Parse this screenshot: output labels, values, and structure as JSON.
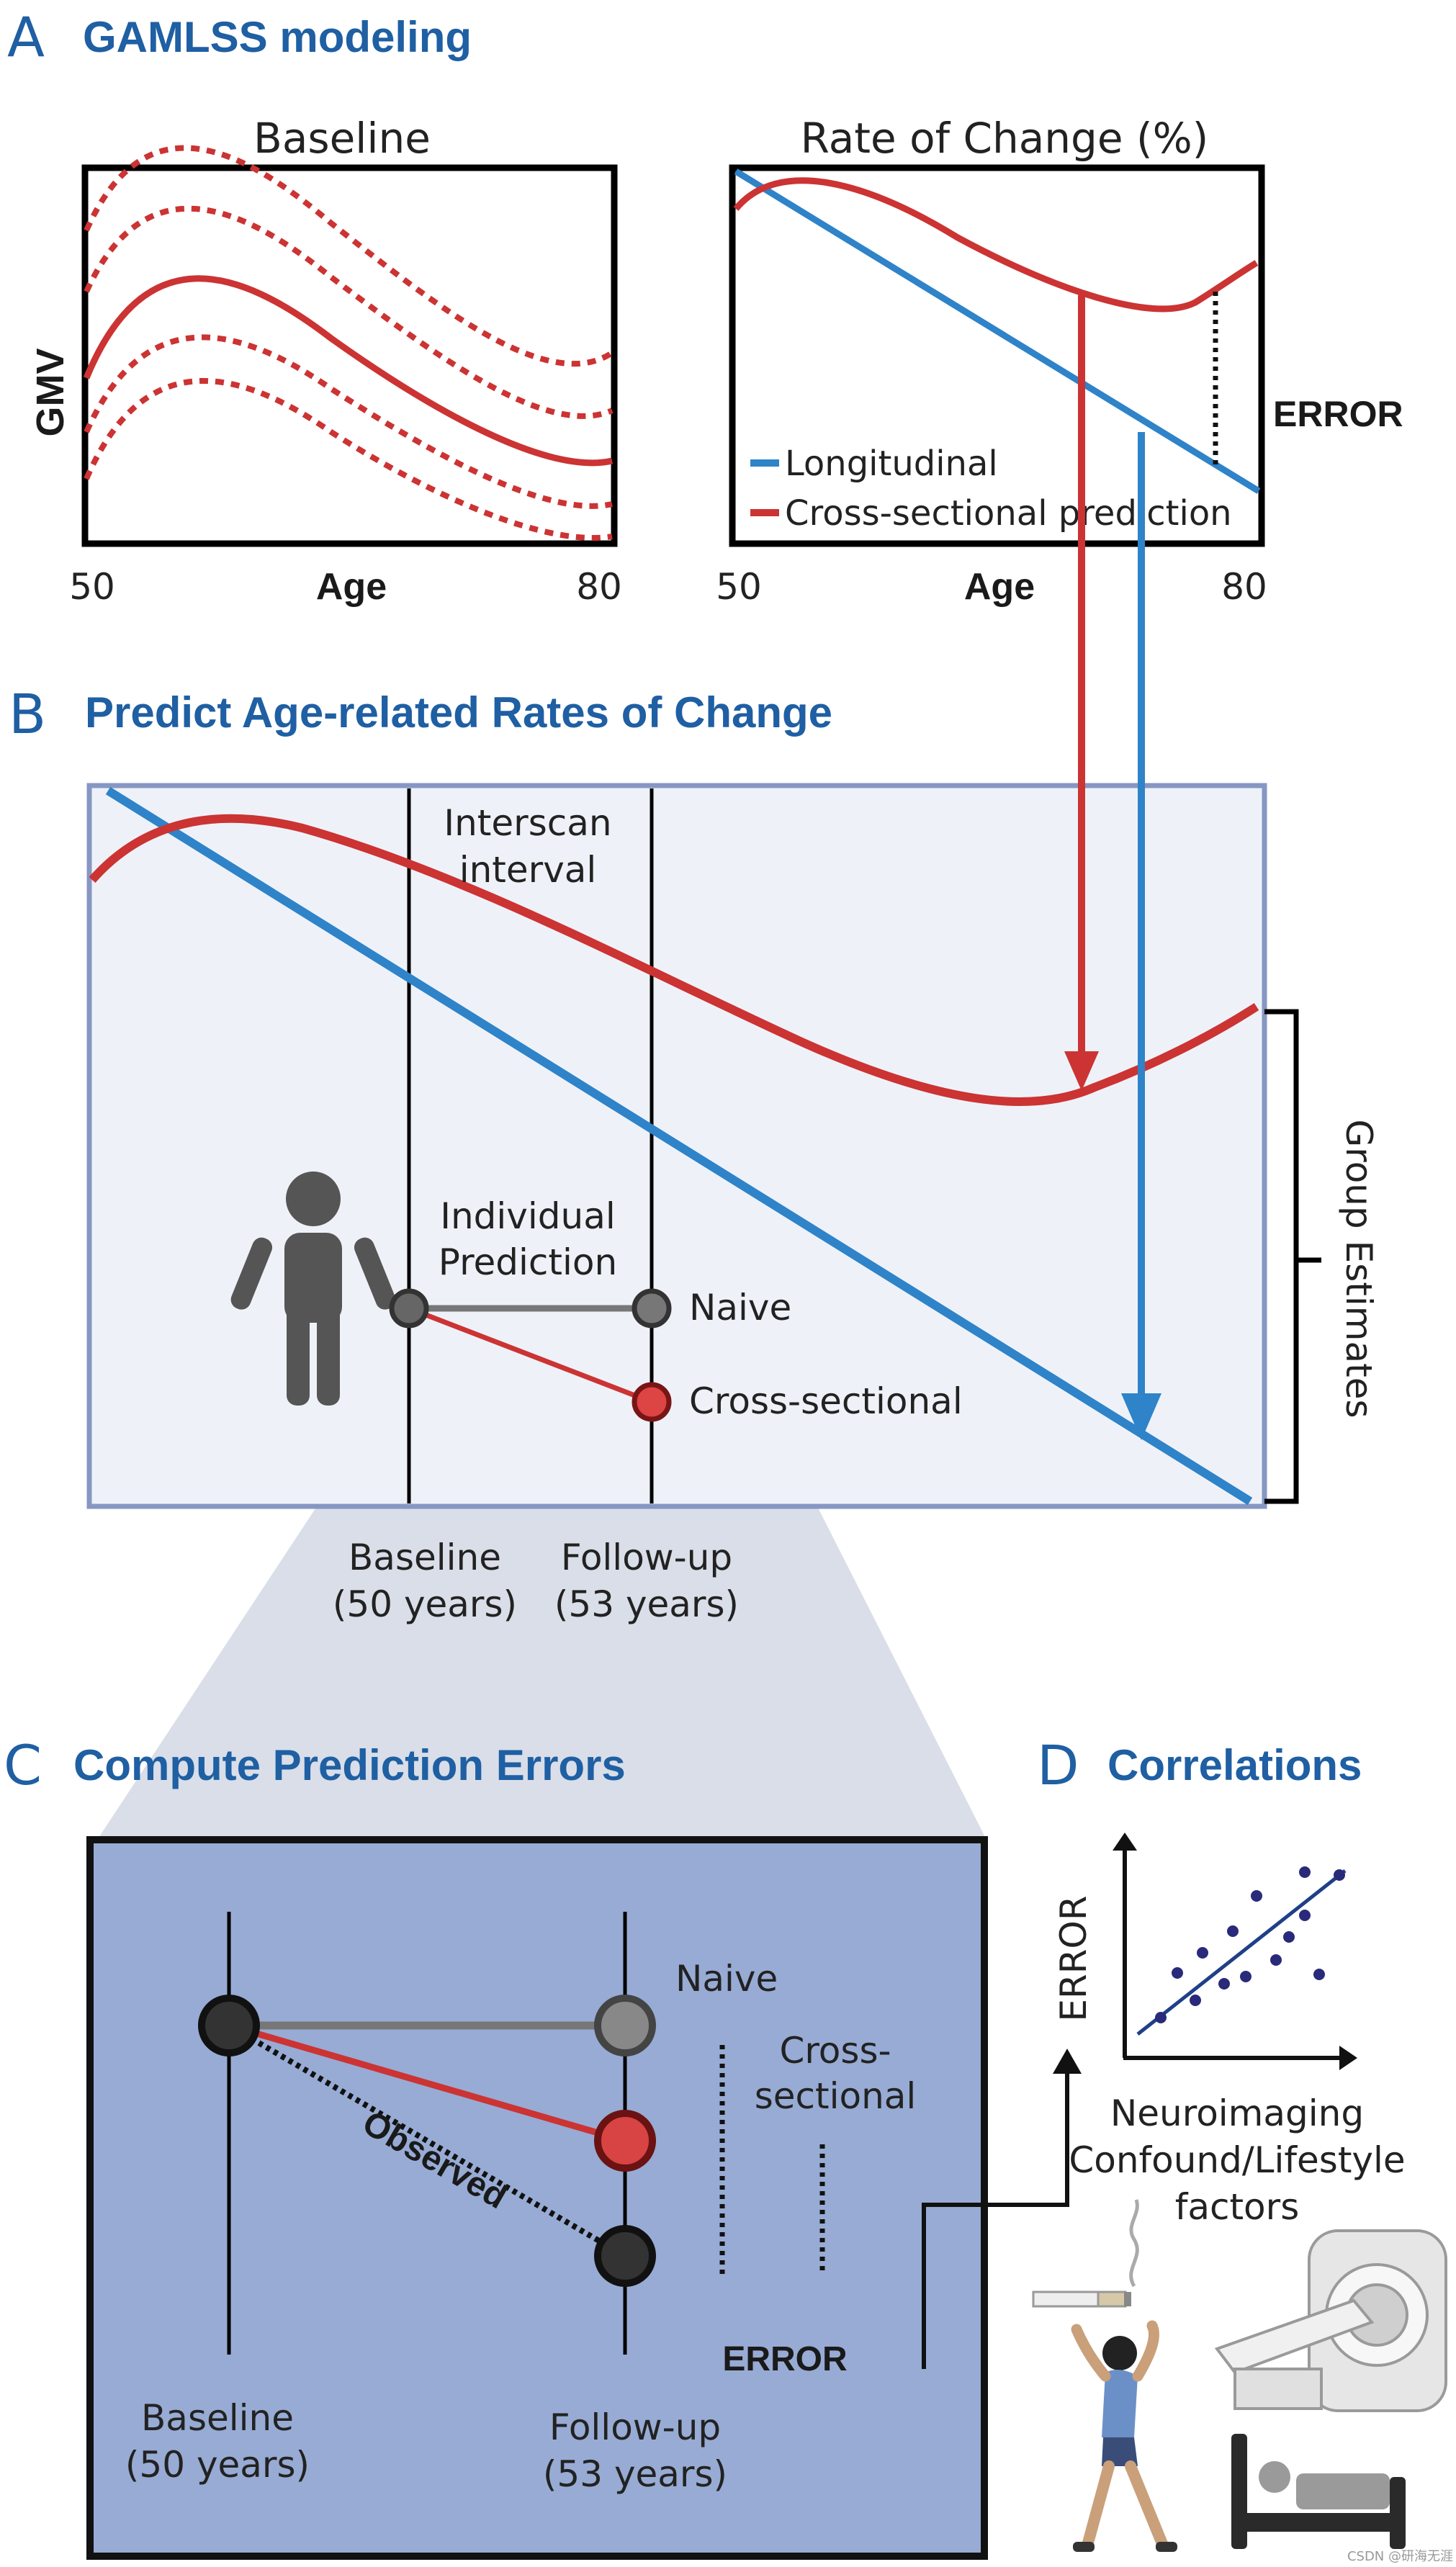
{
  "panel_a": {
    "letter": "A",
    "title": "GAMLSS modeling",
    "baseline": {
      "title": "Baseline",
      "ylabel": "GMV",
      "xlabel": "Age",
      "x_min": "50",
      "x_max": "80"
    },
    "rate": {
      "title": "Rate of Change (%)",
      "xlabel": "Age",
      "x_min": "50",
      "x_max": "80",
      "error_label": "ERROR",
      "legend": [
        {
          "label": "Longitudinal",
          "color": "#2f83c8"
        },
        {
          "label": "Cross-sectional prediction",
          "color": "#cc3333"
        }
      ]
    }
  },
  "panel_b": {
    "letter": "B",
    "title": "Predict Age-related Rates of  Change",
    "interscan_line1": "Interscan",
    "interscan_line2": "interval",
    "individual_line1": "Individual",
    "individual_line2": "Prediction",
    "naive": "Naive",
    "cross_sectional": "Cross-sectional",
    "group_estimates": "Group Estimates",
    "baseline_line1": "Baseline",
    "baseline_line2": "(50 years)",
    "followup_line1": "Follow-up",
    "followup_line2": "(53 years)"
  },
  "panel_c": {
    "letter": "C",
    "title": "Compute Prediction Errors",
    "naive": "Naive",
    "cross_line1": "Cross-",
    "cross_line2": "sectional",
    "observed": "Observed",
    "error": "ERROR",
    "baseline_line1": "Baseline",
    "baseline_line2": "(50 years)",
    "followup_line1": "Follow-up",
    "followup_line2": "(53 years)"
  },
  "panel_d": {
    "letter": "D",
    "title": "Correlations",
    "ylabel": "ERROR",
    "caption_line1": "Neuroimaging",
    "caption_line2": "Confound/Lifestyle",
    "caption_line3": "factors"
  },
  "watermark": "CSDN @研海无涯",
  "colors": {
    "title_blue": "#1f5fa3",
    "red": "#cc3333",
    "blue": "#2f83c8",
    "panel_b_fill": "#eef2f8",
    "panel_c_fill": "#97abd4"
  }
}
